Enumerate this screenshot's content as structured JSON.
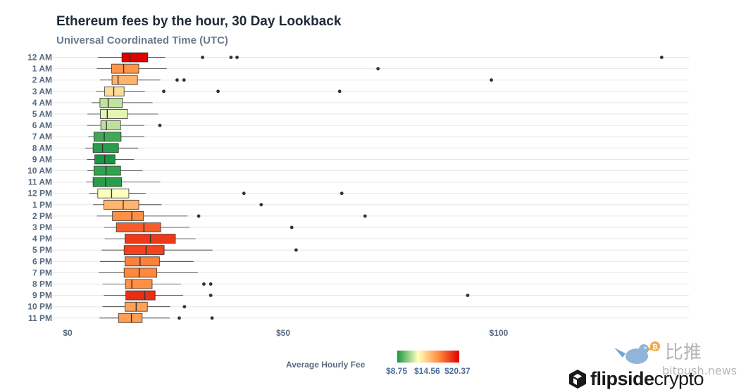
{
  "title": "Ethereum fees by the hour, 30 Day Lookback",
  "subtitle": "Universal Coordinated Time (UTC)",
  "legend": {
    "title": "Average Hourly Fee",
    "labels": [
      "$8.75",
      "$14.56",
      "$20.37"
    ],
    "min": 8.75,
    "mid": 14.56,
    "max": 20.37,
    "colors": [
      "#1a9641",
      "#ffffbf",
      "#ff8c40",
      "#e00000"
    ]
  },
  "watermark": {
    "cn": "比推",
    "site": "bitpush.news",
    "brand_bold": "flipside",
    "brand_light": "crypto"
  },
  "chart_data": {
    "type": "boxplot",
    "orientation": "horizontal",
    "title": "Ethereum fees by the hour, 30 Day Lookback",
    "subtitle": "Universal Coordinated Time (UTC)",
    "x_ticks": [
      0,
      50,
      100
    ],
    "x_tick_labels": [
      "$0",
      "$50",
      "$100"
    ],
    "xlim": [
      0,
      145
    ],
    "grid": true,
    "legend_position": "bottom-center",
    "categories": [
      "12 AM",
      "1 AM",
      "2 AM",
      "3 AM",
      "4 AM",
      "5 AM",
      "6 AM",
      "7 AM",
      "8 AM",
      "9 AM",
      "10 AM",
      "11 AM",
      "12 PM",
      "1 PM",
      "2 PM",
      "3 PM",
      "4 PM",
      "5 PM",
      "6 PM",
      "7 PM",
      "8 PM",
      "9 PM",
      "10 PM",
      "11 PM"
    ],
    "boxes": [
      {
        "hour": "12 AM",
        "whisker_low": 7.0,
        "q1": 12.6,
        "median": 14.5,
        "q3": 18.6,
        "whisker_high": 22.6,
        "mean": 20.37,
        "outliers": [
          31.3,
          37.9,
          39.3,
          137.8
        ]
      },
      {
        "hour": "1 AM",
        "whisker_low": 6.8,
        "q1": 10.2,
        "median": 13.0,
        "q3": 16.5,
        "whisker_high": 23.0,
        "mean": 16.2,
        "outliers": [
          72.0
        ]
      },
      {
        "hour": "2 AM",
        "whisker_low": 7.5,
        "q1": 10.3,
        "median": 11.7,
        "q3": 16.2,
        "whisker_high": 21.5,
        "mean": 15.2,
        "outliers": [
          25.4,
          27.0,
          98.3
        ]
      },
      {
        "hour": "3 AM",
        "whisker_low": 6.6,
        "q1": 8.6,
        "median": 10.7,
        "q3": 13.1,
        "whisker_high": 17.9,
        "mean": 13.8,
        "outliers": [
          22.3,
          34.9,
          63.1
        ]
      },
      {
        "hour": "4 AM",
        "whisker_low": 5.6,
        "q1": 7.5,
        "median": 9.4,
        "q3": 12.7,
        "whisker_high": 19.7,
        "mean": 11.6,
        "outliers": []
      },
      {
        "hour": "5 AM",
        "whisker_low": 4.6,
        "q1": 7.6,
        "median": 9.2,
        "q3": 13.9,
        "whisker_high": 21.0,
        "mean": 12.2,
        "outliers": []
      },
      {
        "hour": "6 AM",
        "whisker_low": 4.5,
        "q1": 7.7,
        "median": 9.0,
        "q3": 12.3,
        "whisker_high": 17.8,
        "mean": 11.5,
        "outliers": [
          21.4
        ]
      },
      {
        "hour": "7 AM",
        "whisker_low": 4.8,
        "q1": 6.1,
        "median": 8.5,
        "q3": 12.4,
        "whisker_high": 17.8,
        "mean": 9.4,
        "outliers": []
      },
      {
        "hour": "8 AM",
        "whisker_low": 4.1,
        "q1": 5.9,
        "median": 8.1,
        "q3": 11.8,
        "whisker_high": 16.4,
        "mean": 9.0,
        "outliers": []
      },
      {
        "hour": "9 AM",
        "whisker_low": 4.5,
        "q1": 6.3,
        "median": 8.6,
        "q3": 11.0,
        "whisker_high": 15.4,
        "mean": 8.75,
        "outliers": []
      },
      {
        "hour": "10 AM",
        "whisker_low": 4.6,
        "q1": 6.1,
        "median": 8.9,
        "q3": 12.3,
        "whisker_high": 17.4,
        "mean": 9.2,
        "outliers": []
      },
      {
        "hour": "11 AM",
        "whisker_low": 4.3,
        "q1": 5.9,
        "median": 8.8,
        "q3": 12.5,
        "whisker_high": 21.5,
        "mean": 9.0,
        "outliers": []
      },
      {
        "hour": "12 PM",
        "whisker_low": 5.0,
        "q1": 7.0,
        "median": 10.2,
        "q3": 14.2,
        "whisker_high": 18.1,
        "mean": 12.6,
        "outliers": [
          40.9,
          63.6
        ]
      },
      {
        "hour": "1 PM",
        "whisker_low": 5.9,
        "q1": 8.4,
        "median": 12.9,
        "q3": 16.5,
        "whisker_high": 21.8,
        "mean": 15.1,
        "outliers": [
          44.9
        ]
      },
      {
        "hour": "2 PM",
        "whisker_low": 6.8,
        "q1": 10.4,
        "median": 14.9,
        "q3": 17.6,
        "whisker_high": 27.8,
        "mean": 16.4,
        "outliers": [
          30.4,
          69.0
        ]
      },
      {
        "hour": "3 PM",
        "whisker_low": 8.4,
        "q1": 11.3,
        "median": 17.7,
        "q3": 21.6,
        "whisker_high": 28.3,
        "mean": 17.8,
        "outliers": [
          52.0
        ]
      },
      {
        "hour": "4 PM",
        "whisker_low": 8.6,
        "q1": 13.3,
        "median": 19.2,
        "q3": 25.0,
        "whisker_high": 29.7,
        "mean": 18.8,
        "outliers": []
      },
      {
        "hour": "5 PM",
        "whisker_low": 7.9,
        "q1": 13.1,
        "median": 18.2,
        "q3": 22.4,
        "whisker_high": 33.6,
        "mean": 18.5,
        "outliers": [
          53.0
        ]
      },
      {
        "hour": "6 PM",
        "whisker_low": 7.5,
        "q1": 13.3,
        "median": 16.8,
        "q3": 21.3,
        "whisker_high": 29.2,
        "mean": 16.8,
        "outliers": []
      },
      {
        "hour": "7 PM",
        "whisker_low": 7.2,
        "q1": 13.1,
        "median": 16.6,
        "q3": 20.7,
        "whisker_high": 30.2,
        "mean": 16.6,
        "outliers": []
      },
      {
        "hour": "8 PM",
        "whisker_low": 8.1,
        "q1": 13.4,
        "median": 14.9,
        "q3": 19.6,
        "whisker_high": 26.3,
        "mean": 16.4,
        "outliers": [
          31.6,
          33.2
        ]
      },
      {
        "hour": "9 PM",
        "whisker_low": 8.4,
        "q1": 13.5,
        "median": 17.9,
        "q3": 20.3,
        "whisker_high": 26.8,
        "mean": 19.1,
        "outliers": [
          33.2,
          92.8
        ]
      },
      {
        "hour": "10 PM",
        "whisker_low": 8.1,
        "q1": 13.3,
        "median": 15.9,
        "q3": 18.5,
        "whisker_high": 23.8,
        "mean": 15.8,
        "outliers": [
          27.1
        ]
      },
      {
        "hour": "11 PM",
        "whisker_low": 7.4,
        "q1": 11.8,
        "median": 14.8,
        "q3": 17.3,
        "whisker_high": 23.7,
        "mean": 15.9,
        "outliers": [
          25.9,
          33.5
        ]
      }
    ]
  }
}
